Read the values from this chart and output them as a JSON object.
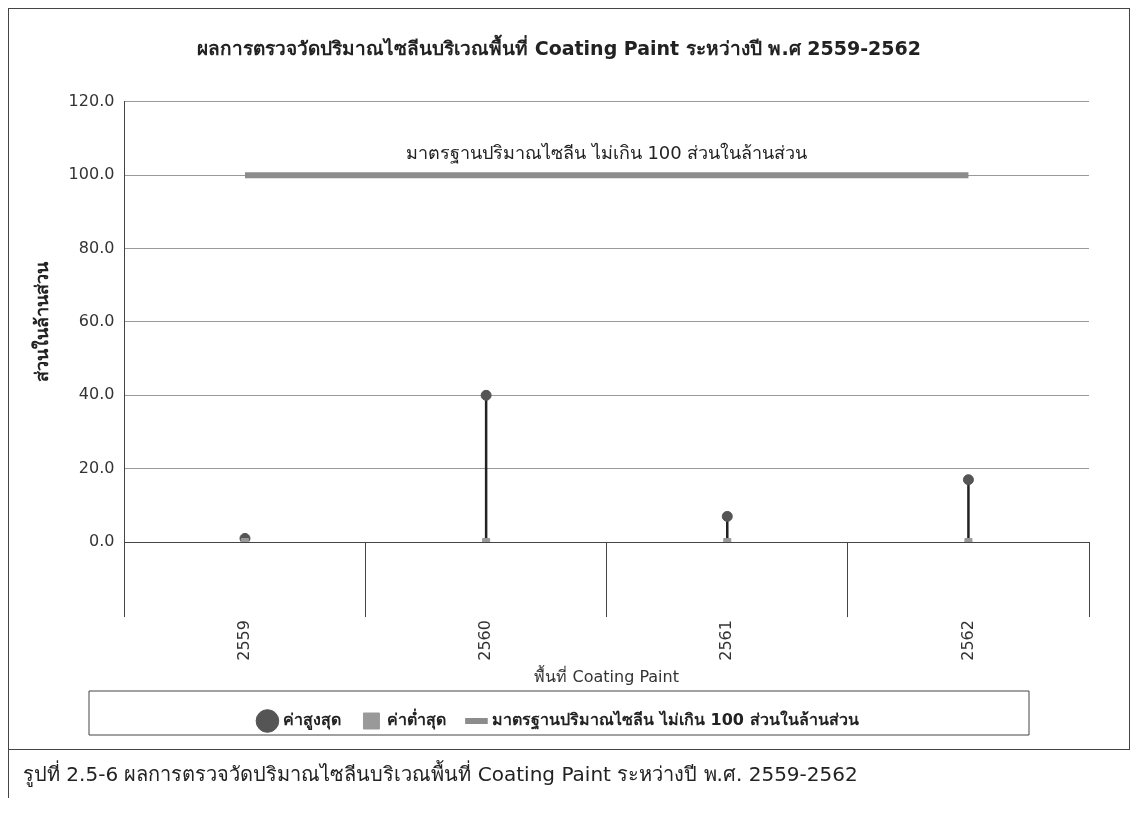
{
  "chart_data": {
    "type": "line",
    "title": "ผลการตรวจวัดปริมาณไซลีนบริเวณพื้นที่ Coating Paint ระหว่างปี พ.ศ 2559-2562",
    "xlabel": "พื้นที่ Coating Paint",
    "ylabel": "ส่วนในล้านส่วน",
    "categories": [
      "2559",
      "2560",
      "2561",
      "2562"
    ],
    "series": [
      {
        "name": "ค่าสูงสุด",
        "type": "lollipop",
        "marker": "circle",
        "color": "#555555",
        "values": [
          1,
          40,
          7,
          17
        ]
      },
      {
        "name": "ค่าต่ำสุด",
        "type": "scatter",
        "marker": "square",
        "color": "#999999",
        "values": [
          0,
          0,
          0,
          0
        ]
      },
      {
        "name": "มาตรฐานปริมาณไซลีน ไม่เกิน 100 ส่วนในล้านส่วน",
        "marker": "none",
        "color": "#8c8c8c",
        "values": [
          100,
          100,
          100,
          100
        ]
      }
    ],
    "ylim": [
      0,
      120
    ],
    "yticks": [
      {
        "value": 0,
        "label": "0.0"
      },
      {
        "value": 20,
        "label": "20.0"
      },
      {
        "value": 40,
        "label": "40.0"
      },
      {
        "value": 60,
        "label": "60.0"
      },
      {
        "value": 80,
        "label": "80.0"
      },
      {
        "value": 100,
        "label": "100.0"
      },
      {
        "value": 120,
        "label": "120.0"
      }
    ],
    "grid": "y",
    "legend": "bottom",
    "annotations": [
      {
        "text": "มาตรฐานปริมาณไซลีน ไม่เกิน 100 ส่วนในล้านส่วน",
        "y": 100
      },
      "รูปที่ 2.5-6 ผลการตรวจวัดปริมาณไซลีนบริเวณพื้นที่ Coating Paint ระหว่างปี พ.ศ. 2559-2562"
    ]
  }
}
